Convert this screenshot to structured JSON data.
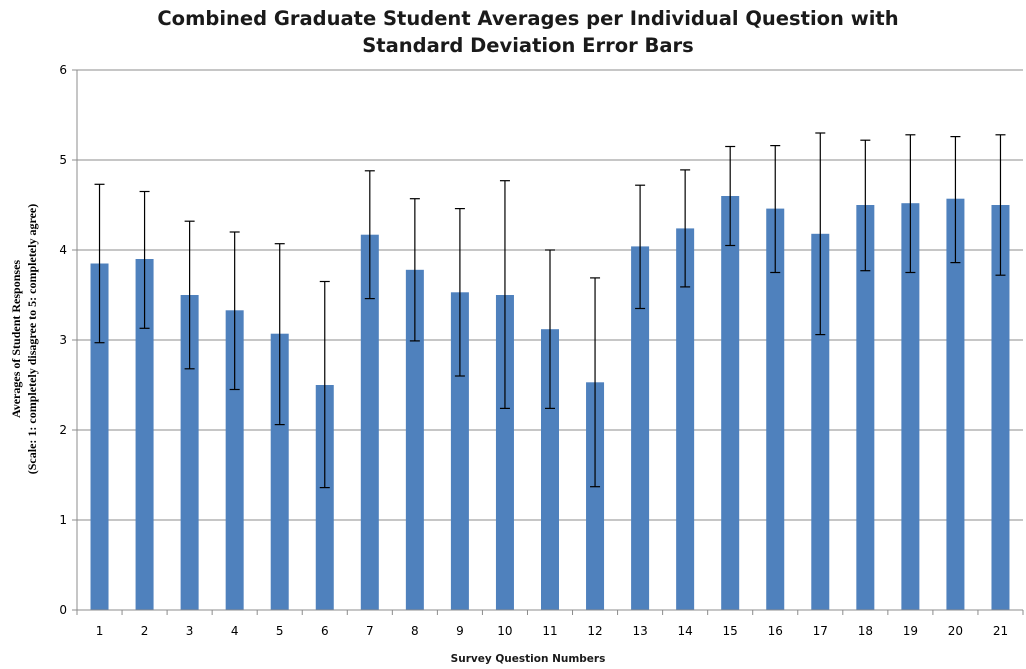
{
  "chart_data": {
    "type": "bar",
    "title_lines": [
      "Combined Graduate Student Averages per Individual Question with",
      "Standard Deviation Error Bars"
    ],
    "xlabel": "Survey Question Numbers",
    "ylabel_lines": [
      "Averages of Student Responses",
      "(Scale: 1:  completely disagree to 5: completely agree)"
    ],
    "categories": [
      "1",
      "2",
      "3",
      "4",
      "5",
      "6",
      "7",
      "8",
      "9",
      "10",
      "11",
      "12",
      "13",
      "14",
      "15",
      "16",
      "17",
      "18",
      "19",
      "20",
      "21"
    ],
    "values": [
      3.85,
      3.9,
      3.5,
      3.33,
      3.07,
      2.5,
      4.17,
      3.78,
      3.53,
      3.5,
      3.12,
      2.53,
      4.04,
      4.24,
      4.6,
      4.46,
      4.18,
      4.5,
      4.52,
      4.57,
      4.5
    ],
    "error_upper": [
      4.73,
      4.65,
      4.32,
      4.2,
      4.07,
      3.65,
      4.88,
      4.57,
      4.46,
      4.77,
      4.0,
      3.69,
      4.72,
      4.89,
      5.15,
      5.16,
      5.3,
      5.22,
      5.28,
      5.26,
      5.28
    ],
    "error_lower": [
      2.97,
      3.13,
      2.68,
      2.45,
      2.06,
      1.36,
      3.46,
      2.99,
      2.6,
      2.24,
      2.24,
      1.37,
      3.35,
      3.59,
      4.05,
      3.75,
      3.06,
      3.77,
      3.75,
      3.86,
      3.72
    ],
    "ylim": [
      0,
      6
    ],
    "yticks": [
      "0",
      "1",
      "2",
      "3",
      "4",
      "5",
      "6"
    ],
    "grid": true,
    "bar_color": "#4f81bd",
    "gridline_color": "#8c8c8c",
    "error_bar_color": "#000000"
  }
}
